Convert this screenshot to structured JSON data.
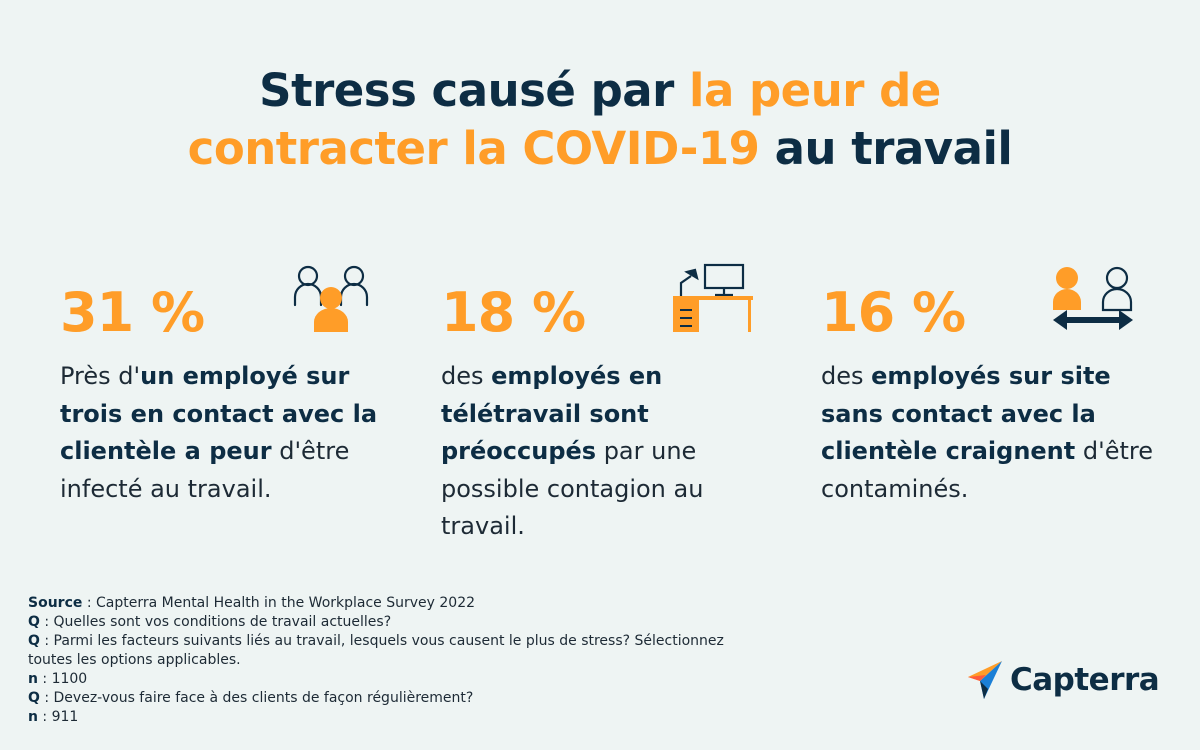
{
  "title": {
    "part1": "Stress causé par ",
    "highlight1": "la peur de",
    "highlight2": "contracter la COVID-19",
    "part2": " au travail"
  },
  "stats": [
    {
      "value": "31 %",
      "icon": "people-icon",
      "t1": "Près d'",
      "b1": "un employé sur trois en contact avec la clientèle a peur",
      "t2": " d'être infecté au travail."
    },
    {
      "value": "18 %",
      "icon": "home-office-desk-icon",
      "t1": "des ",
      "b1": "employés en télétravail sont préoccupés",
      "t2": " par une possible contagion au travail."
    },
    {
      "value": "16 %",
      "icon": "social-distance-icon",
      "t1": "des ",
      "b1": "employés sur site sans contact avec la clientèle craignent",
      "t2": " d'être contaminés."
    }
  ],
  "notes": {
    "source_label": "Source",
    "source_text": " : Capterra Mental Health in the Workplace Survey 2022",
    "q_label": "Q",
    "q1_text": " : Quelles sont vos conditions de travail actuelles?",
    "q2_text": " : Parmi les facteurs suivants liés au travail, lesquels vous causent le plus de stress? Sélectionnez toutes les options applicables.",
    "n_label": "n",
    "n1_text": " : 1100",
    "q3_text": " : Devez-vous faire face à des clients de façon régulièrement?",
    "n2_text": " : 911"
  },
  "logo": {
    "text": "Capterra"
  },
  "colors": {
    "accent": "#ff9d28",
    "dark": "#0d2d44",
    "background": "#eef4f3"
  }
}
